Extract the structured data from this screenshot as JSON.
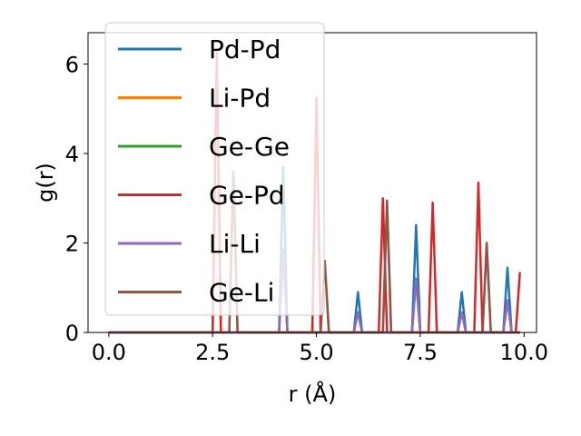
{
  "chart_data": {
    "type": "line",
    "xlabel": "r (Å)",
    "ylabel": "g(r)",
    "xlim": [
      -0.5,
      10.3
    ],
    "ylim": [
      0,
      6.7
    ],
    "xticks": [
      0.0,
      2.5,
      5.0,
      7.5,
      10.0
    ],
    "xtick_labels": [
      "0.0",
      "2.5",
      "5.0",
      "7.5",
      "10.0"
    ],
    "yticks": [
      0,
      2,
      4,
      6
    ],
    "ytick_labels": [
      "0",
      "2",
      "4",
      "6"
    ],
    "grid": false,
    "legend_position": "upper-left",
    "series": [
      {
        "name": "Pd-Pd",
        "color": "#1f77b4",
        "x": [
          0.0,
          4.1,
          4.2,
          4.3,
          5.9,
          6.0,
          6.1,
          7.3,
          7.4,
          7.5,
          8.4,
          8.5,
          8.6,
          9.5,
          9.6,
          9.7,
          9.9
        ],
        "y": [
          0,
          0,
          3.7,
          0,
          0,
          0.9,
          0,
          0,
          2.4,
          0,
          0,
          0.9,
          0,
          0,
          1.45,
          0,
          0
        ]
      },
      {
        "name": "Li-Pd",
        "color": "#ff7f0e",
        "x": [
          0.0,
          2.5,
          2.6,
          2.7,
          2.9,
          3.0,
          3.1,
          4.9,
          5.0,
          5.1,
          5.2,
          5.3,
          6.6,
          6.7,
          6.8,
          9.0,
          9.1,
          9.2,
          9.9
        ],
        "y": [
          0,
          0,
          6.2,
          0,
          0,
          3.6,
          0,
          0,
          5.2,
          0,
          1.6,
          0,
          0,
          2.9,
          0,
          0,
          2.0,
          0,
          0
        ]
      },
      {
        "name": "Ge-Ge",
        "color": "#2ca02c",
        "x": [
          0.0,
          4.1,
          4.2,
          4.3,
          5.9,
          6.0,
          6.1,
          7.3,
          7.4,
          7.5,
          8.4,
          8.5,
          8.6,
          9.5,
          9.6,
          9.7,
          9.9
        ],
        "y": [
          0,
          0,
          1.85,
          0,
          0,
          0.45,
          0,
          0,
          1.2,
          0,
          0,
          0.45,
          0,
          0,
          0.72,
          0,
          0
        ]
      },
      {
        "name": "Ge-Pd",
        "color": "#d62728",
        "x": [
          0.0,
          2.5,
          2.6,
          2.7,
          4.9,
          5.0,
          5.1,
          6.5,
          6.6,
          6.7,
          7.7,
          7.8,
          7.9,
          8.8,
          8.9,
          9.0,
          9.8,
          9.9
        ],
        "y": [
          0,
          0,
          6.25,
          0,
          0,
          5.25,
          0,
          0,
          3.0,
          0,
          0,
          2.9,
          0,
          0,
          3.35,
          0,
          0,
          1.35
        ]
      },
      {
        "name": "Li-Li",
        "color": "#9467bd",
        "x": [
          0.0,
          4.1,
          4.2,
          4.3,
          5.9,
          6.0,
          6.1,
          7.3,
          7.4,
          7.5,
          8.4,
          8.5,
          8.6,
          9.5,
          9.6,
          9.7,
          9.9
        ],
        "y": [
          0,
          0,
          1.85,
          0,
          0,
          0.45,
          0,
          0,
          1.2,
          0,
          0,
          0.45,
          0,
          0,
          0.72,
          0,
          0
        ]
      },
      {
        "name": "Ge-Li",
        "color": "#8c564b",
        "x": [
          0.0,
          2.9,
          3.0,
          3.1,
          5.1,
          5.2,
          5.3,
          6.6,
          6.7,
          6.8,
          9.0,
          9.1,
          9.2,
          9.9
        ],
        "y": [
          0,
          0,
          3.6,
          0,
          0,
          1.6,
          0,
          0,
          2.95,
          0,
          0,
          2.0,
          0,
          0
        ]
      }
    ]
  }
}
